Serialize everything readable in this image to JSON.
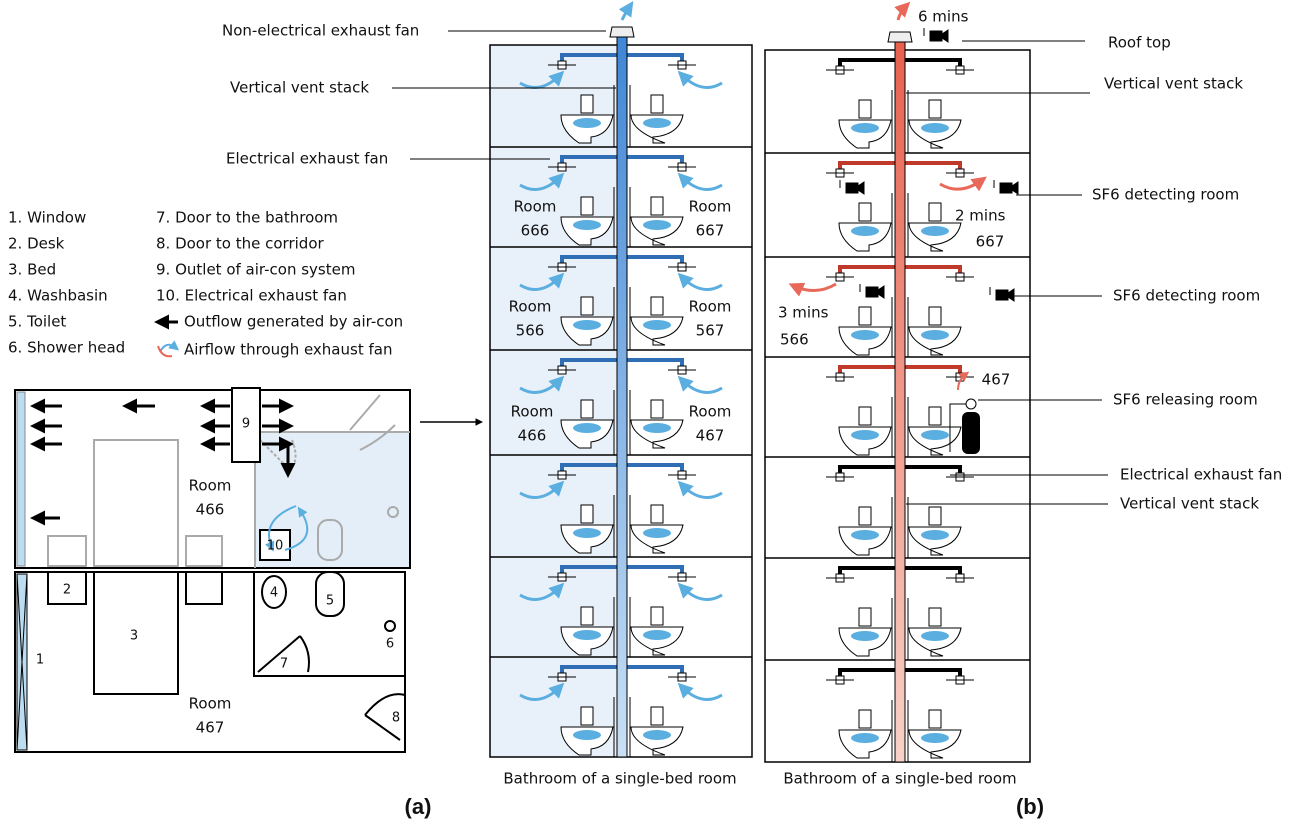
{
  "legend": {
    "items": [
      "1. Window",
      "2. Desk",
      "3. Bed",
      "4. Washbasin",
      "5. Toilet",
      "6. Shower head",
      "7. Door to the bathroom",
      "8. Door to the corridor",
      "9.  Outlet of air-con system",
      "10. Electrical exhaust fan",
      "Outflow generated by air-con",
      "Airflow through exhaust fan"
    ]
  },
  "floor_plan": {
    "upper_room": {
      "name": "Room",
      "number": "466"
    },
    "lower_room": {
      "name": "Room",
      "number": "467"
    },
    "markers": [
      "1",
      "2",
      "3",
      "4",
      "5",
      "6",
      "7",
      "8",
      "9",
      "10"
    ]
  },
  "panel_a": {
    "labels": {
      "non_electrical_fan": "Non-electrical exhaust fan",
      "vent_stack": "Vertical vent stack",
      "electrical_fan": "Electrical exhaust fan"
    },
    "rooms": [
      {
        "name": "Room",
        "number": "666"
      },
      {
        "name": "Room",
        "number": "667"
      },
      {
        "name": "Room",
        "number": "566"
      },
      {
        "name": "Room",
        "number": "567"
      },
      {
        "name": "Room",
        "number": "466"
      },
      {
        "name": "Room",
        "number": "467"
      }
    ],
    "caption": "Bathroom of a single-bed room",
    "tag": "(a)"
  },
  "panel_b": {
    "labels": {
      "roof_time": "6 mins",
      "roof_top": "Roof top",
      "vent_stack_top": "Vertical vent stack",
      "detecting_1": "SF6 detecting room",
      "time_667": "2 mins",
      "room_667": "667",
      "detecting_2": "SF6 detecting room",
      "time_566": "3 mins",
      "room_566": "566",
      "room_467": "467",
      "releasing": "SF6 releasing room",
      "electrical_fan": "Electrical exhaust fan",
      "vent_stack_bottom": "Vertical vent stack"
    },
    "caption": "Bathroom of a single-bed room",
    "tag": "(b)"
  }
}
